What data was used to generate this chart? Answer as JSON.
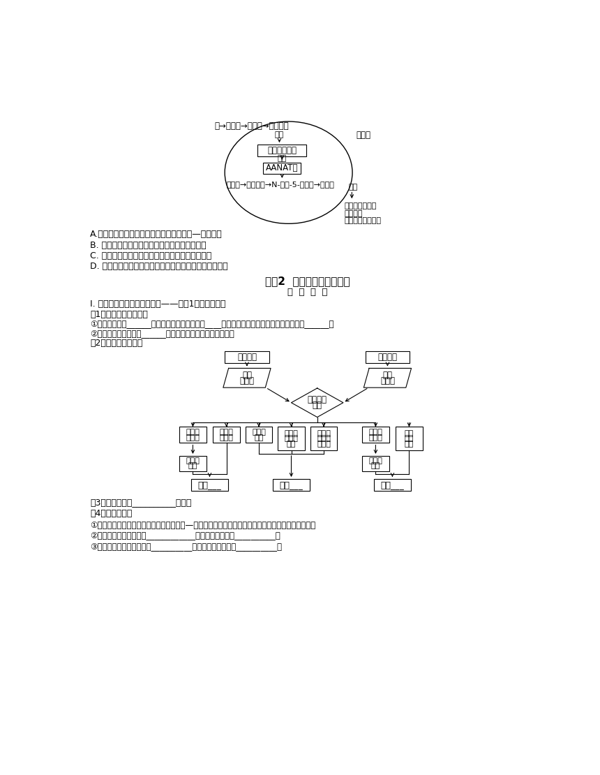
{
  "bg_color": "#ffffff",
  "top_arrow_text": "暗→视网膜→下丘脑→交感神经",
  "fen_mi1": "分泌",
  "song_guo_ti": "松果体",
  "box1_text": "去甲肾上腺素",
  "huo_hua": "活化",
  "box2_text": "AANAT酶",
  "chain_text": "色氨酸→五羟色胺→N-乙酰-5-羟色胺→褪黑素",
  "fen_mi2": "分泌",
  "effect1": "抑制神经兴奋性",
  "effect2": "抑制繁殖",
  "effect3": "提高免疫系统功能",
  "optA": "A.参与褪黑素合成与分泌的调节方式有神经—体液调节",
  "optB": "B. 正常的睡眠和有规律的作息能提高机体免疫力",
  "optC": "C. 冬季夜间给鸡舍适当补充灯光会降低鸡的产蛋率",
  "optD": "D. 夜间长时间玩手机会抑制褪黑素的合成而降低睡眠质量",
  "sec_title": "考点2  体温调节与水盐调节",
  "sec_sub": "概  念  落  实",
  "line1": "I. 体液调节和神经调节的协调——实例1：体温的调节",
  "line2": "（1）人体的产热与散热",
  "line3": "①热量的来源：______产热。安静时，主要来自____、脑等器官的活动；运动时，主要来自______。",
  "line4": "②散热主要途径：通过______的辐射、传导、对流以及蒸发。",
  "line5": "（2）体温调节的过程",
  "fc_cold": "寒冷刺激",
  "fc_hot": "炎热刺激",
  "fc_skin_l": "皮肤\n感受器",
  "fc_skin_r": "皮肤\n感受器",
  "fc_center": "体温调节\n中枢",
  "fc_b1": "皮肤血\n管收缩",
  "fc_b2": "汗腺分\n泌减少",
  "fc_b3": "骨骼肌\n战栗",
  "fc_b4": "肾上腺\n素分泌\n增多",
  "fc_b5": "甲状腺\n激素分\n泌增多",
  "fc_b6": "皮肤血\n管舒张",
  "fc_b7": "汗腺\n分泌\n加强",
  "fc_b1b": "血流量\n减少",
  "fc_b6b": "血流量\n增多",
  "fc_res1": "减少___",
  "fc_res2": "增加___",
  "fc_res3": "增加___",
  "line6": "（3）调节方式：__________调节。",
  "line7": "（4）相关分析：",
  "line8": "①寒冷和炎热环境下，体温调节都依赖神经—体液调节机制，但以神经调节为主，且是自主神经调节。",
  "line9": "②机体的主要产热器官是____________，主要散热器官是__________。",
  "line10": "③人体的体温调节中枢位于__________，体温感觉中枢位于__________。"
}
